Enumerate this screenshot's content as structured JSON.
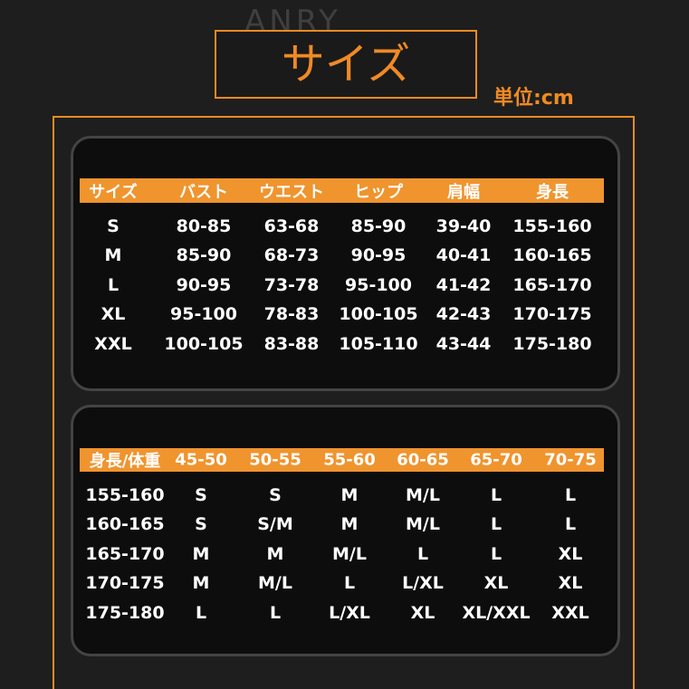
{
  "header": {
    "watermark": "ANRY",
    "title": "サイズ",
    "unit": "単位:cm"
  },
  "table1": {
    "columns": [
      "サイズ",
      "バスト",
      "ウエスト",
      "ヒップ",
      "肩幅",
      "身長"
    ],
    "rows": [
      [
        "S",
        "80-85",
        "63-68",
        "85-90",
        "39-40",
        "155-160"
      ],
      [
        "M",
        "85-90",
        "68-73",
        "90-95",
        "40-41",
        "160-165"
      ],
      [
        "L",
        "90-95",
        "73-78",
        "95-100",
        "41-42",
        "165-170"
      ],
      [
        "XL",
        "95-100",
        "78-83",
        "100-105",
        "42-43",
        "170-175"
      ],
      [
        "XXL",
        "100-105",
        "83-88",
        "105-110",
        "43-44",
        "175-180"
      ]
    ]
  },
  "table2": {
    "columns": [
      "身長/体重",
      "45-50",
      "50-55",
      "55-60",
      "60-65",
      "65-70",
      "70-75"
    ],
    "rows": [
      [
        "155-160",
        "S",
        "S",
        "M",
        "M/L",
        "L",
        "L"
      ],
      [
        "160-165",
        "S",
        "S/M",
        "M",
        "M/L",
        "L",
        "L"
      ],
      [
        "165-170",
        "M",
        "M",
        "M/L",
        "L",
        "L",
        "XL"
      ],
      [
        "170-175",
        "M",
        "M/L",
        "L",
        "L/XL",
        "XL",
        "XL"
      ],
      [
        "175-180",
        "L",
        "L",
        "L/XL",
        "XL",
        "XL/XXL",
        "XXL"
      ]
    ]
  }
}
